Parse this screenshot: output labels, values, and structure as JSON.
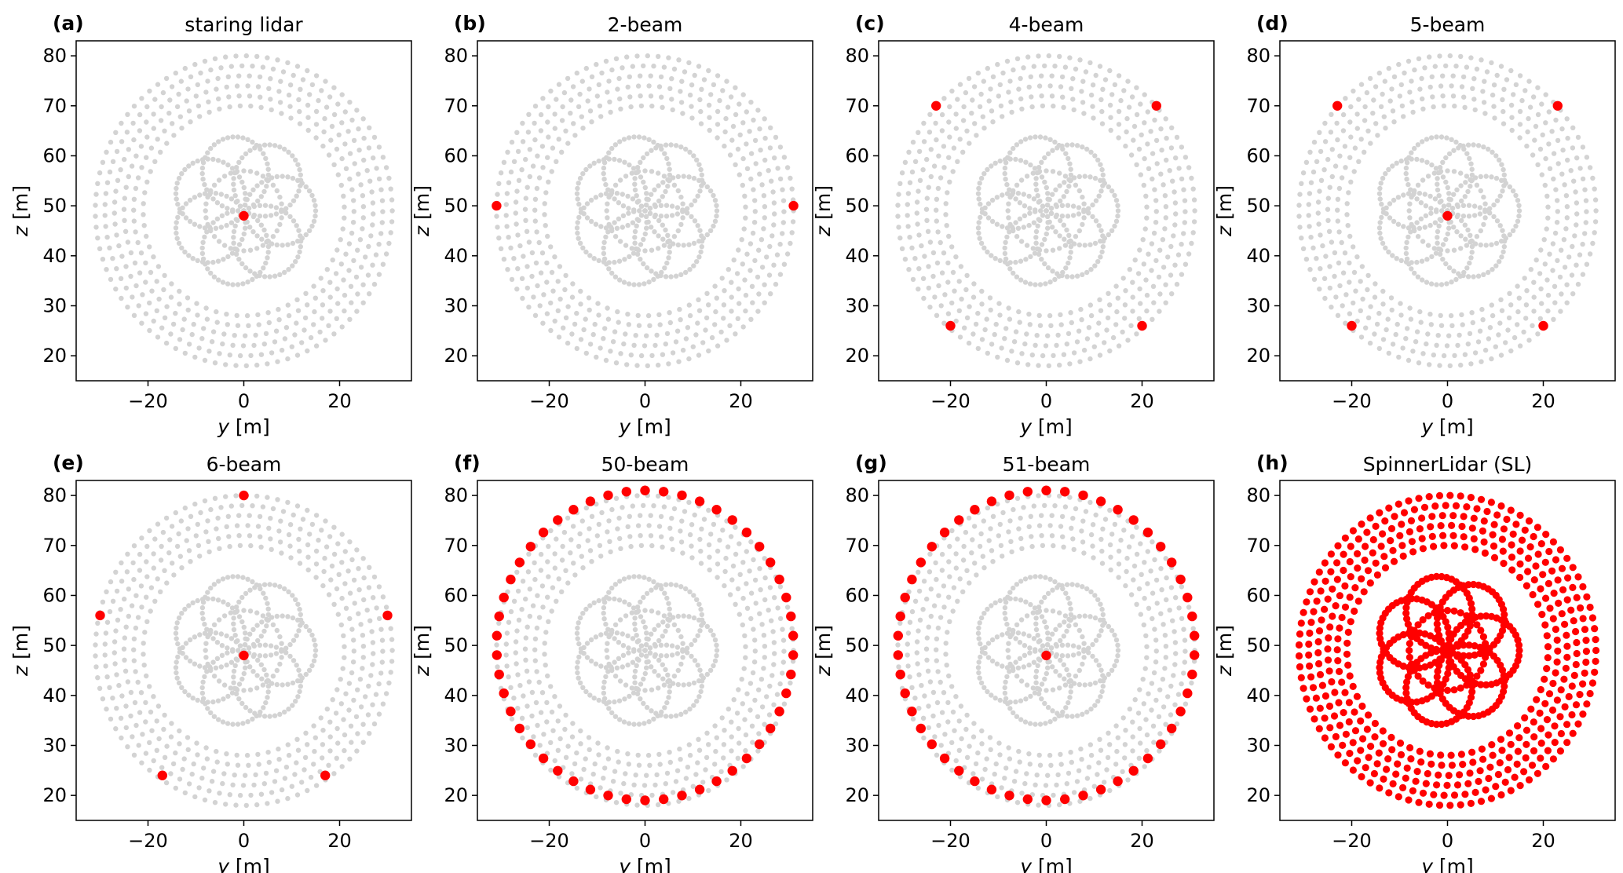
{
  "figure": {
    "colors": {
      "background_points": "#d3d3d3",
      "beam_points": "#ff0000",
      "axes": "#000000"
    },
    "x_axis_label": {
      "var": "y",
      "unit": " [m]"
    },
    "y_axis_label": {
      "var": "z",
      "unit": " [m]"
    }
  },
  "chart_data": [
    {
      "type": "scatter",
      "letter": "(a)",
      "title": "staring lidar",
      "xlim": [
        -35,
        35
      ],
      "ylim": [
        15,
        83
      ],
      "xticks": [
        -20,
        0,
        20
      ],
      "yticks": [
        20,
        30,
        40,
        50,
        60,
        70,
        80
      ],
      "background": "SpinnerLidar rose pattern (gray)",
      "points": [
        [
          0,
          48
        ]
      ]
    },
    {
      "type": "scatter",
      "letter": "(b)",
      "title": "2-beam",
      "xlim": [
        -35,
        35
      ],
      "ylim": [
        15,
        83
      ],
      "xticks": [
        -20,
        0,
        20
      ],
      "yticks": [
        20,
        30,
        40,
        50,
        60,
        70,
        80
      ],
      "background": "SpinnerLidar rose pattern (gray)",
      "points": [
        [
          -31,
          50
        ],
        [
          31,
          50
        ]
      ]
    },
    {
      "type": "scatter",
      "letter": "(c)",
      "title": "4-beam",
      "xlim": [
        -35,
        35
      ],
      "ylim": [
        15,
        83
      ],
      "xticks": [
        -20,
        0,
        20
      ],
      "yticks": [
        20,
        30,
        40,
        50,
        60,
        70,
        80
      ],
      "background": "SpinnerLidar rose pattern (gray)",
      "points": [
        [
          -23,
          70
        ],
        [
          23,
          70
        ],
        [
          -20,
          26
        ],
        [
          20,
          26
        ]
      ]
    },
    {
      "type": "scatter",
      "letter": "(d)",
      "title": "5-beam",
      "xlim": [
        -35,
        35
      ],
      "ylim": [
        15,
        83
      ],
      "xticks": [
        -20,
        0,
        20
      ],
      "yticks": [
        20,
        30,
        40,
        50,
        60,
        70,
        80
      ],
      "background": "SpinnerLidar rose pattern (gray)",
      "points": [
        [
          -23,
          70
        ],
        [
          23,
          70
        ],
        [
          0,
          48
        ],
        [
          -20,
          26
        ],
        [
          20,
          26
        ]
      ]
    },
    {
      "type": "scatter",
      "letter": "(e)",
      "title": "6-beam",
      "xlim": [
        -35,
        35
      ],
      "ylim": [
        15,
        83
      ],
      "xticks": [
        -20,
        0,
        20
      ],
      "yticks": [
        20,
        30,
        40,
        50,
        60,
        70,
        80
      ],
      "background": "SpinnerLidar rose pattern (gray)",
      "points": [
        [
          0,
          80
        ],
        [
          -30,
          56
        ],
        [
          30,
          56
        ],
        [
          0,
          48
        ],
        [
          -17,
          24
        ],
        [
          17,
          24
        ]
      ]
    },
    {
      "type": "scatter",
      "letter": "(f)",
      "title": "50-beam",
      "xlim": [
        -35,
        35
      ],
      "ylim": [
        15,
        83
      ],
      "xticks": [
        -20,
        0,
        20
      ],
      "yticks": [
        20,
        30,
        40,
        50,
        60,
        70,
        80
      ],
      "background": "SpinnerLidar rose pattern (gray)",
      "points": "50 points on a ring of radius ~31 m centred at (0, 50)"
    },
    {
      "type": "scatter",
      "letter": "(g)",
      "title": "51-beam",
      "xlim": [
        -35,
        35
      ],
      "ylim": [
        15,
        83
      ],
      "xticks": [
        -20,
        0,
        20
      ],
      "yticks": [
        20,
        30,
        40,
        50,
        60,
        70,
        80
      ],
      "background": "SpinnerLidar rose pattern (gray)",
      "points": "50-point ring of radius ~31 m centred at (0, 50) plus centre point (0, 48)"
    },
    {
      "type": "scatter",
      "letter": "(h)",
      "title": "SpinnerLidar (SL)",
      "xlim": [
        -35,
        35
      ],
      "ylim": [
        15,
        83
      ],
      "xticks": [
        -20,
        0,
        20
      ],
      "yticks": [
        20,
        30,
        40,
        50,
        60,
        70,
        80
      ],
      "background": "none",
      "points": "full SpinnerLidar rose pattern (red)"
    }
  ]
}
